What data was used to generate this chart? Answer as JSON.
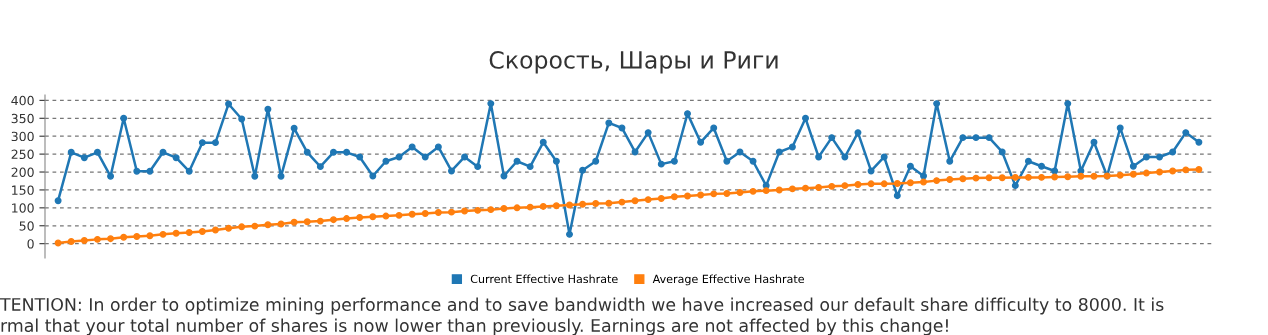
{
  "chart_data": {
    "type": "line",
    "title": "Скорость, Шары и Риги",
    "categories": [
      null,
      null,
      null,
      null,
      null,
      null,
      null,
      null,
      null,
      null,
      null,
      null,
      null,
      null,
      null,
      null,
      null,
      null,
      null,
      null,
      null,
      null,
      null,
      null,
      null,
      null,
      null,
      null,
      null,
      null,
      null,
      null,
      null,
      null,
      null,
      null,
      null,
      null,
      null,
      null,
      null,
      null,
      null,
      null,
      null,
      null,
      null,
      null,
      null,
      null,
      null,
      null,
      null,
      null,
      null,
      null,
      null,
      null,
      null,
      null,
      null,
      null,
      null,
      null,
      null,
      null,
      null,
      null,
      null,
      null,
      null,
      null,
      null,
      null,
      null,
      null,
      null,
      null,
      null,
      null,
      null,
      null,
      null,
      null,
      null,
      null,
      null,
      null
    ],
    "series": [
      {
        "name": "Current Effective Hashrate",
        "color": "#1f77b4",
        "values": [
          120,
          255,
          240,
          255,
          188,
          350,
          202,
          202,
          255,
          240,
          202,
          282,
          282,
          390,
          348,
          188,
          375,
          188,
          322,
          255,
          215,
          255,
          255,
          242,
          189,
          230,
          242,
          270,
          242,
          270,
          203,
          242,
          215,
          391,
          189,
          230,
          215,
          283,
          230,
          26,
          205,
          230,
          337,
          323,
          256,
          310,
          222,
          230,
          363,
          283,
          323,
          230,
          256,
          230,
          162,
          256,
          270,
          350,
          242,
          296,
          242,
          310,
          203,
          242,
          134,
          216,
          189,
          391,
          230,
          296,
          296,
          296,
          256,
          162,
          230,
          216,
          203,
          391,
          203,
          283,
          189,
          323,
          216,
          242,
          242,
          256,
          310,
          283
        ]
      },
      {
        "name": "Average Effective Hashrate",
        "color": "#ff7f0e",
        "values": [
          2,
          6,
          9,
          12,
          14,
          18,
          20,
          22,
          26,
          29,
          31,
          34,
          38,
          43,
          47,
          49,
          53,
          55,
          60,
          61,
          63,
          67,
          70,
          73,
          75,
          77,
          79,
          82,
          84,
          87,
          88,
          91,
          93,
          95,
          98,
          100,
          102,
          104,
          106,
          108,
          110,
          112,
          113,
          116,
          120,
          123,
          126,
          131,
          133,
          136,
          139,
          140,
          143,
          146,
          148,
          150,
          153,
          155,
          157,
          160,
          162,
          165,
          167,
          167,
          168,
          170,
          172,
          176,
          179,
          181,
          183,
          184,
          184,
          185,
          185,
          185,
          186,
          187,
          188,
          188,
          189,
          191,
          194,
          197,
          200,
          203,
          206,
          207
        ]
      }
    ],
    "ylim": [
      -40,
      415
    ],
    "yticks": [
      0,
      50,
      100,
      150,
      200,
      250,
      300,
      350,
      400
    ],
    "tick_labels": "y",
    "grid": "y",
    "legend": "bottom",
    "marker": "circle",
    "line_style": "solid",
    "annotations": [
      "TENTION: In order to optimize mining performance and to save bandwidth we have increased our default share difficulty to 8000. It is",
      "rmal that your total number of shares is now lower than previously. Earnings are not affected by this change!"
    ]
  }
}
